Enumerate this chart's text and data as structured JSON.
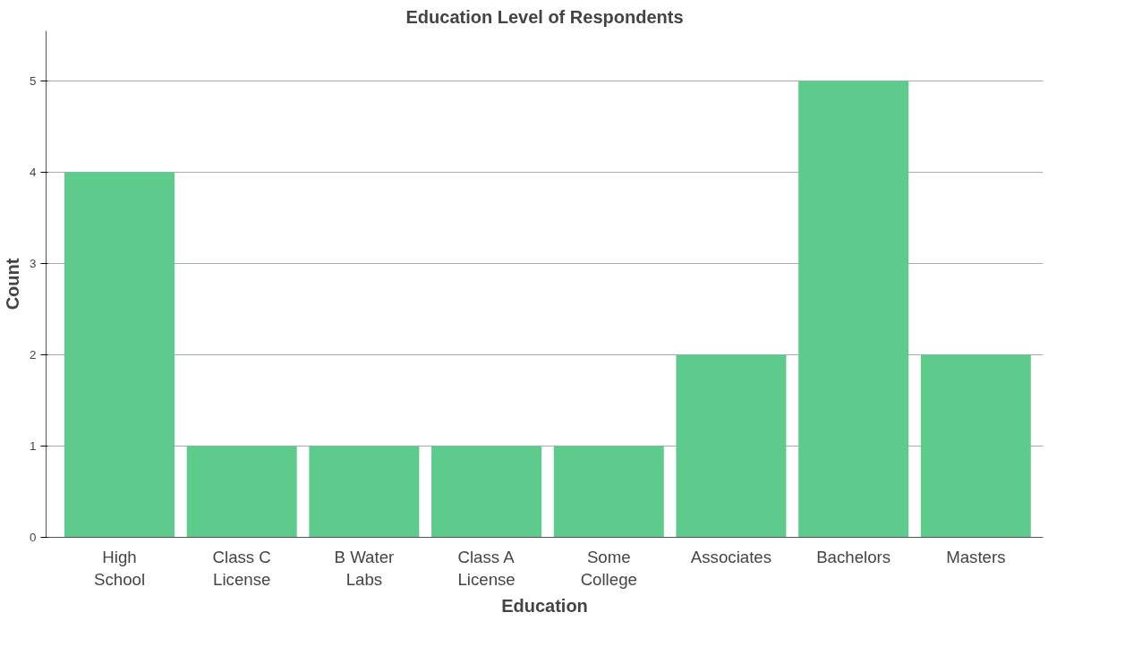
{
  "chart_data": {
    "type": "bar",
    "title": "Education Level of Respondents",
    "xlabel": "Education",
    "ylabel": "Count",
    "categories": [
      "High\nSchool",
      "Class C\nLicense",
      "B Water\nLabs",
      "Class A\nLicense",
      "Some\nCollege",
      "Associates",
      "Bachelors",
      "Masters"
    ],
    "values": [
      4,
      1,
      1,
      1,
      1,
      2,
      5,
      2
    ],
    "color": "#5ccb8b",
    "ylim": [
      0,
      5.55
    ],
    "yticks": [
      0,
      1,
      2,
      3,
      4,
      5
    ],
    "grid": "y"
  }
}
